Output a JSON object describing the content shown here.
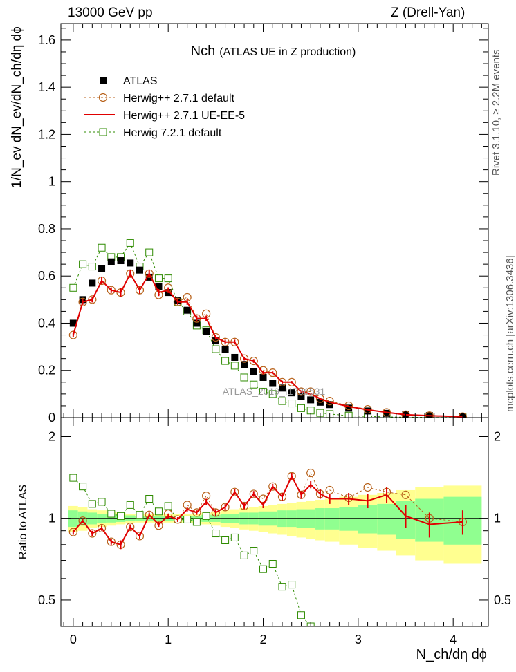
{
  "header": {
    "energy_label": "13000 GeV pp",
    "process_label": "Z (Drell-Yan)"
  },
  "side_labels": {
    "rivet": "Rivet 3.1.10, ≥ 2.2M events",
    "mcplots": "mcplots.cern.ch [arXiv:1306.3436]"
  },
  "watermark": "ATLAS_2019_I1736531",
  "chart_data": {
    "type": "scatter",
    "title_main": "Nch",
    "title_sub": "(ATLAS UE in Z production)",
    "xlabel": "N_ch/dη dϕ",
    "ylabel": "1/N_ev dN_ev/dN_ch/dη dϕ",
    "ratio_ylabel": "Ratio to ATLAS",
    "xlim": [
      -0.13,
      4.37
    ],
    "ylim": [
      0,
      1.67
    ],
    "ratio_ylim": [
      0.4,
      2.35
    ],
    "x_ticks": [
      0,
      1,
      2,
      3,
      4
    ],
    "y_ticks": [
      0,
      0.2,
      0.4,
      0.6,
      0.8,
      1,
      1.2,
      1.4,
      1.6
    ],
    "y_tick_labels": [
      "0",
      "0.2",
      "0.4",
      "0.6",
      "0.8",
      "1",
      "1.2",
      "1.4",
      "1.6"
    ],
    "ratio_ticks": [
      0.5,
      1,
      2
    ],
    "ratio_tick_labels": [
      "0.5",
      "1",
      "2"
    ],
    "x_tick_labels": [
      "0",
      "1",
      "2",
      "3",
      "4"
    ],
    "legend_position": "top-left",
    "colors": {
      "data": "#000000",
      "herwigpp_default": "#b8621b",
      "herwigpp_ueee5": "#e00000",
      "herwig7": "#2e8b00",
      "band_inner": "#90ff90",
      "band_outer": "#ffff90"
    },
    "series": [
      {
        "name": "ATLAS",
        "style": "data",
        "x": [
          0.0,
          0.1,
          0.2,
          0.3,
          0.4,
          0.5,
          0.6,
          0.7,
          0.8,
          0.9,
          1.0,
          1.1,
          1.2,
          1.3,
          1.4,
          1.5,
          1.6,
          1.7,
          1.8,
          1.9,
          2.0,
          2.1,
          2.2,
          2.3,
          2.4,
          2.5,
          2.6,
          2.7,
          2.9,
          3.1,
          3.3,
          3.5,
          3.75,
          4.1
        ],
        "y": [
          0.4,
          0.5,
          0.57,
          0.63,
          0.66,
          0.665,
          0.655,
          0.625,
          0.595,
          0.555,
          0.53,
          0.495,
          0.455,
          0.4,
          0.365,
          0.325,
          0.29,
          0.255,
          0.225,
          0.195,
          0.17,
          0.145,
          0.125,
          0.105,
          0.09,
          0.075,
          0.065,
          0.055,
          0.04,
          0.028,
          0.018,
          0.012,
          0.008,
          0.004
        ]
      },
      {
        "name": "Herwig++ 2.7.1 default",
        "style": "circle-dashed",
        "x": [
          0.0,
          0.1,
          0.2,
          0.3,
          0.4,
          0.5,
          0.6,
          0.7,
          0.8,
          0.9,
          1.0,
          1.1,
          1.2,
          1.3,
          1.4,
          1.5,
          1.6,
          1.7,
          1.8,
          1.9,
          2.0,
          2.1,
          2.2,
          2.3,
          2.4,
          2.5,
          2.6,
          2.7,
          2.9,
          3.1,
          3.3,
          3.5,
          3.75,
          4.1
        ],
        "y": [
          0.35,
          0.49,
          0.5,
          0.58,
          0.54,
          0.53,
          0.61,
          0.54,
          0.61,
          0.52,
          0.55,
          0.49,
          0.51,
          0.42,
          0.44,
          0.34,
          0.32,
          0.32,
          0.25,
          0.24,
          0.2,
          0.19,
          0.15,
          0.15,
          0.11,
          0.11,
          0.08,
          0.07,
          0.05,
          0.035,
          0.022,
          0.012,
          0.008,
          0.004
        ]
      },
      {
        "name": "Herwig++ 2.7.1 UE-EE-5",
        "style": "line-errors",
        "x": [
          0.0,
          0.1,
          0.2,
          0.3,
          0.4,
          0.5,
          0.6,
          0.7,
          0.8,
          0.9,
          1.0,
          1.1,
          1.2,
          1.3,
          1.4,
          1.5,
          1.6,
          1.7,
          1.8,
          1.9,
          2.0,
          2.1,
          2.2,
          2.3,
          2.4,
          2.5,
          2.6,
          2.7,
          2.9,
          3.1,
          3.3,
          3.5,
          3.75,
          4.1
        ],
        "y": [
          0.35,
          0.49,
          0.5,
          0.58,
          0.54,
          0.53,
          0.61,
          0.54,
          0.61,
          0.53,
          0.54,
          0.49,
          0.49,
          0.42,
          0.42,
          0.34,
          0.32,
          0.32,
          0.25,
          0.24,
          0.19,
          0.19,
          0.15,
          0.15,
          0.11,
          0.1,
          0.08,
          0.065,
          0.047,
          0.033,
          0.022,
          0.012,
          0.008,
          0.004
        ],
        "yerr": [
          0.01,
          0.012,
          0.012,
          0.015,
          0.012,
          0.02,
          0.015,
          0.015,
          0.015,
          0.015,
          0.012,
          0.012,
          0.012,
          0.012,
          0.012,
          0.01,
          0.01,
          0.01,
          0.008,
          0.008,
          0.007,
          0.006,
          0.006,
          0.005,
          0.005,
          0.004,
          0.004,
          0.003,
          0.003,
          0.002,
          0.002,
          0.001,
          0.001,
          0.001
        ]
      },
      {
        "name": "Herwig 7.2.1 default",
        "style": "square-dashed",
        "x": [
          0.0,
          0.1,
          0.2,
          0.3,
          0.4,
          0.5,
          0.6,
          0.7,
          0.8,
          0.9,
          1.0,
          1.1,
          1.2,
          1.3,
          1.4,
          1.5,
          1.6,
          1.7,
          1.8,
          1.9,
          2.0,
          2.1,
          2.2,
          2.3,
          2.4,
          2.5,
          2.6,
          2.7,
          2.9,
          3.1,
          3.3,
          3.5,
          3.75,
          4.1
        ],
        "y": [
          0.55,
          0.65,
          0.64,
          0.72,
          0.68,
          0.68,
          0.74,
          0.64,
          0.7,
          0.59,
          0.59,
          0.49,
          0.45,
          0.39,
          0.37,
          0.29,
          0.24,
          0.22,
          0.17,
          0.14,
          0.11,
          0.1,
          0.07,
          0.06,
          0.04,
          0.03,
          0.02,
          0.015,
          0.008,
          0.005,
          0.003,
          0.002,
          0.001,
          0.0005
        ]
      }
    ],
    "ratio": {
      "band_x_edges": [
        -0.05,
        0.05,
        0.15,
        0.25,
        0.35,
        0.45,
        0.55,
        0.65,
        0.75,
        0.85,
        0.95,
        1.05,
        1.15,
        1.25,
        1.35,
        1.45,
        1.55,
        1.65,
        1.75,
        1.85,
        1.95,
        2.05,
        2.15,
        2.25,
        2.35,
        2.45,
        2.55,
        2.65,
        2.8,
        3.0,
        3.2,
        3.4,
        3.6,
        3.9,
        4.3
      ],
      "band_inner": [
        0.07,
        0.06,
        0.05,
        0.04,
        0.035,
        0.03,
        0.025,
        0.02,
        0.02,
        0.02,
        0.02,
        0.02,
        0.02,
        0.02,
        0.03,
        0.03,
        0.04,
        0.04,
        0.05,
        0.05,
        0.06,
        0.06,
        0.07,
        0.07,
        0.08,
        0.08,
        0.09,
        0.09,
        0.1,
        0.12,
        0.13,
        0.16,
        0.18,
        0.2
      ],
      "band_outer": [
        0.11,
        0.1,
        0.08,
        0.07,
        0.06,
        0.05,
        0.04,
        0.035,
        0.035,
        0.035,
        0.035,
        0.035,
        0.035,
        0.04,
        0.05,
        0.06,
        0.07,
        0.08,
        0.09,
        0.1,
        0.11,
        0.12,
        0.13,
        0.14,
        0.15,
        0.16,
        0.17,
        0.18,
        0.2,
        0.22,
        0.24,
        0.27,
        0.3,
        0.32
      ],
      "herwigpp_default": [
        0.89,
        0.98,
        0.88,
        0.92,
        0.82,
        0.8,
        0.93,
        0.86,
        1.03,
        0.94,
        1.04,
        0.99,
        1.12,
        1.05,
        1.21,
        1.05,
        1.1,
        1.25,
        1.11,
        1.23,
        1.18,
        1.31,
        1.2,
        1.43,
        1.22,
        1.47,
        1.23,
        1.27,
        1.19,
        1.3,
        1.25,
        1.22,
        1.0,
        0.97
      ],
      "herwigpp_ueee5": [
        0.89,
        0.98,
        0.88,
        0.92,
        0.82,
        0.8,
        0.93,
        0.86,
        1.03,
        0.95,
        1.02,
        0.99,
        1.08,
        1.05,
        1.15,
        1.05,
        1.1,
        1.25,
        1.11,
        1.23,
        1.12,
        1.31,
        1.2,
        1.43,
        1.22,
        1.33,
        1.23,
        1.18,
        1.18,
        1.16,
        1.22,
        1.02,
        0.95,
        0.97
      ],
      "herwigpp_ueee5_err": [
        0.02,
        0.02,
        0.02,
        0.02,
        0.02,
        0.03,
        0.02,
        0.02,
        0.02,
        0.02,
        0.02,
        0.02,
        0.02,
        0.02,
        0.03,
        0.03,
        0.03,
        0.03,
        0.03,
        0.03,
        0.03,
        0.03,
        0.04,
        0.04,
        0.04,
        0.04,
        0.05,
        0.05,
        0.06,
        0.07,
        0.08,
        0.1,
        0.1,
        0.1
      ],
      "herwig7": [
        1.41,
        1.31,
        1.13,
        1.15,
        1.04,
        1.02,
        1.12,
        1.03,
        1.18,
        1.06,
        1.11,
        0.99,
        0.99,
        0.97,
        1.02,
        0.88,
        0.83,
        0.85,
        0.73,
        0.76,
        0.65,
        0.68,
        0.56,
        0.57,
        0.44,
        0.4
      ]
    }
  }
}
